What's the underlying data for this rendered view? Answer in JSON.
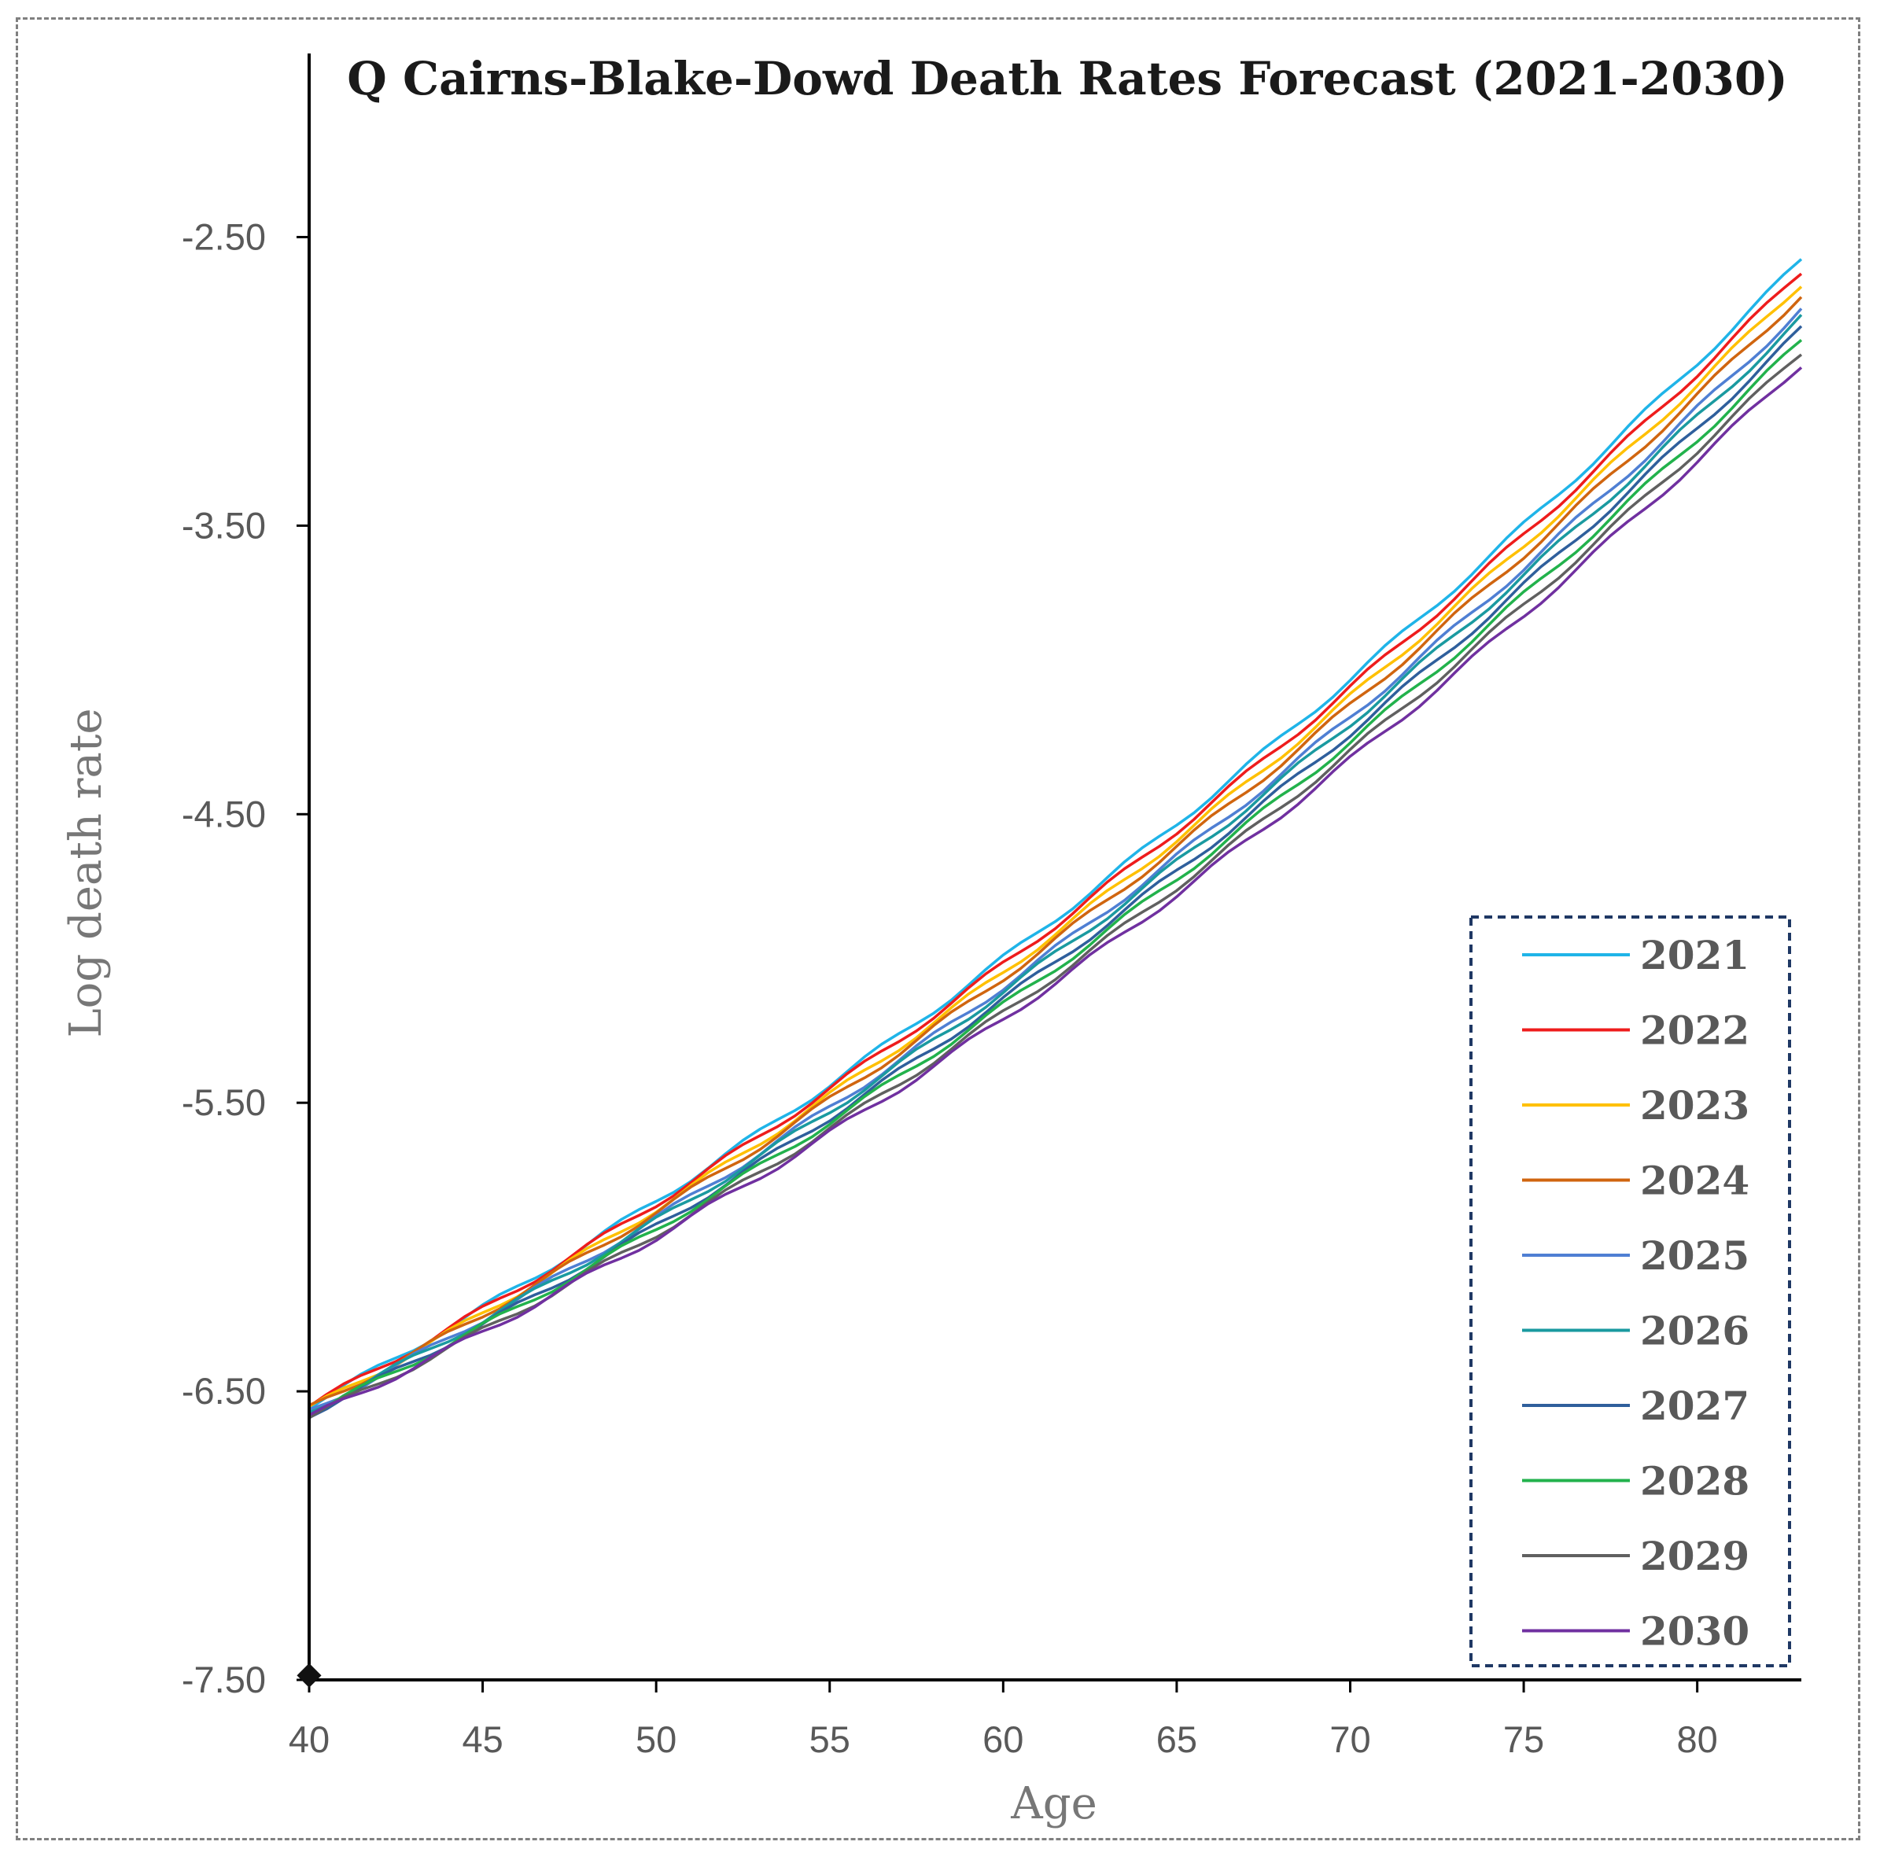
{
  "chart_data": {
    "type": "line",
    "title": "Q Cairns-Blake-Dowd Death Rates Forecast (2021-2030)",
    "xlabel": "Age",
    "ylabel": "Log death rate",
    "xlim": [
      40,
      83
    ],
    "ylim": [
      -7.5,
      -2.0
    ],
    "xticks": [
      "40",
      "45",
      "50",
      "55",
      "60",
      "65",
      "70",
      "75",
      "80"
    ],
    "yticks": [
      "-2.50",
      "-3.50",
      "-4.50",
      "-5.50",
      "-6.50",
      "-7.50"
    ],
    "legend_position": "bottom-right",
    "series": [
      {
        "name": "2021",
        "color": "#1fb4e8",
        "start": -6.55,
        "end": -2.58
      },
      {
        "name": "2022",
        "color": "#ee1c1c",
        "start": -6.55,
        "end": -2.62
      },
      {
        "name": "2023",
        "color": "#ffc000",
        "start": -6.56,
        "end": -2.66
      },
      {
        "name": "2024",
        "color": "#d0650f",
        "start": -6.56,
        "end": -2.7
      },
      {
        "name": "2025",
        "color": "#4f7fd3",
        "start": -6.57,
        "end": -2.75
      },
      {
        "name": "2026",
        "color": "#1a9aa0",
        "start": -6.57,
        "end": -2.78
      },
      {
        "name": "2027",
        "color": "#2f5f9c",
        "start": -6.58,
        "end": -2.82
      },
      {
        "name": "2028",
        "color": "#22b24c",
        "start": -6.58,
        "end": -2.86
      },
      {
        "name": "2029",
        "color": "#606060",
        "start": -6.59,
        "end": -2.9
      },
      {
        "name": "2030",
        "color": "#7030a0",
        "start": -6.59,
        "end": -2.94
      }
    ]
  }
}
